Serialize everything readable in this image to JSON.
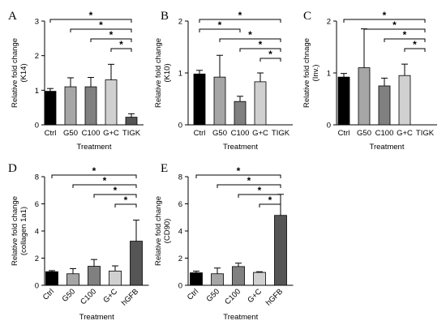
{
  "chart_data": [
    {
      "panel": "A",
      "type": "bar",
      "categories": [
        "Ctrl",
        "G50",
        "C100",
        "G+C",
        "TIGK"
      ],
      "values": [
        0.97,
        1.1,
        1.1,
        1.3,
        0.22
      ],
      "errors": [
        0.08,
        0.26,
        0.27,
        0.45,
        0.1
      ],
      "colors": [
        "#000000",
        "#a6a6a6",
        "#808080",
        "#d0d0d0",
        "#555555"
      ],
      "ylabel": "Relative fold change",
      "ylabel2": "(K14)",
      "xlabel": "Treatment",
      "ylim": [
        0,
        3
      ],
      "yticks": [
        0,
        1,
        2,
        3
      ],
      "slanted_labels": false,
      "significance": [
        {
          "from": 0,
          "to": 4,
          "label": "*"
        },
        {
          "from": 1,
          "to": 4,
          "label": "*"
        },
        {
          "from": 2,
          "to": 4,
          "label": "*"
        },
        {
          "from": 3,
          "to": 4,
          "label": "*"
        }
      ]
    },
    {
      "panel": "B",
      "type": "bar",
      "categories": [
        "Ctrl",
        "G50",
        "C100",
        "G+C",
        "TIGK"
      ],
      "values": [
        0.98,
        0.92,
        0.45,
        0.83,
        0.0
      ],
      "errors": [
        0.07,
        0.42,
        0.1,
        0.17,
        0.0
      ],
      "colors": [
        "#000000",
        "#a6a6a6",
        "#808080",
        "#d0d0d0",
        "#555555"
      ],
      "ylabel": "Relative fold change",
      "ylabel2": "(K10)",
      "xlabel": "Treatment",
      "ylim": [
        0,
        2
      ],
      "yticks": [
        0,
        1,
        2
      ],
      "slanted_labels": false,
      "significance": [
        {
          "from": 0,
          "to": 4,
          "label": "*"
        },
        {
          "from": 0,
          "to": 2,
          "label": "*"
        },
        {
          "from": 1,
          "to": 4,
          "label": "*"
        },
        {
          "from": 2,
          "to": 4,
          "label": "*"
        },
        {
          "from": 3,
          "to": 4,
          "label": "*"
        }
      ]
    },
    {
      "panel": "C",
      "type": "bar",
      "categories": [
        "Ctrl",
        "G50",
        "C100",
        "G+C",
        "TIGK"
      ],
      "values": [
        0.92,
        1.1,
        0.75,
        0.95,
        0.0
      ],
      "errors": [
        0.07,
        0.75,
        0.15,
        0.22,
        0.0
      ],
      "colors": [
        "#000000",
        "#a6a6a6",
        "#808080",
        "#d0d0d0",
        "#555555"
      ],
      "ylabel": "Relative fold chnage",
      "ylabel2": "(Inv.)",
      "xlabel": "Treatment",
      "ylim": [
        0,
        2
      ],
      "yticks": [
        0,
        1,
        2
      ],
      "slanted_labels": false,
      "significance": [
        {
          "from": 0,
          "to": 4,
          "label": "*"
        },
        {
          "from": 1,
          "to": 4,
          "label": "*"
        },
        {
          "from": 2,
          "to": 4,
          "label": "*"
        },
        {
          "from": 3,
          "to": 4,
          "label": "*"
        }
      ]
    },
    {
      "panel": "D",
      "type": "bar",
      "categories": [
        "Ctrl",
        "G50",
        "C100",
        "G+C",
        "hGFB"
      ],
      "values": [
        1.0,
        0.85,
        1.4,
        1.05,
        3.25
      ],
      "errors": [
        0.08,
        0.38,
        0.5,
        0.38,
        1.55
      ],
      "colors": [
        "#000000",
        "#a6a6a6",
        "#808080",
        "#d0d0d0",
        "#555555"
      ],
      "ylabel": "Relative fold change",
      "ylabel2": "(collagen 1a1)",
      "xlabel": "Treatment",
      "ylim": [
        0,
        8
      ],
      "yticks": [
        0,
        2,
        4,
        6,
        8
      ],
      "slanted_labels": true,
      "significance": [
        {
          "from": 0,
          "to": 4,
          "label": "*"
        },
        {
          "from": 1,
          "to": 4,
          "label": "*"
        },
        {
          "from": 2,
          "to": 4,
          "label": "*"
        },
        {
          "from": 3,
          "to": 4,
          "label": "*"
        }
      ]
    },
    {
      "panel": "E",
      "type": "bar",
      "categories": [
        "Ctrl",
        "G50",
        "C100",
        "G+C",
        "hGFB"
      ],
      "values": [
        0.92,
        0.85,
        1.38,
        0.95,
        5.15
      ],
      "errors": [
        0.12,
        0.42,
        0.25,
        0.05,
        1.55
      ],
      "colors": [
        "#000000",
        "#a6a6a6",
        "#808080",
        "#d0d0d0",
        "#555555"
      ],
      "ylabel": "Relative fold change",
      "ylabel2": "(CD90)",
      "xlabel": "Treatment",
      "ylim": [
        0,
        8
      ],
      "yticks": [
        0,
        2,
        4,
        6,
        8
      ],
      "slanted_labels": true,
      "significance": [
        {
          "from": 0,
          "to": 4,
          "label": "*"
        },
        {
          "from": 1,
          "to": 4,
          "label": "*"
        },
        {
          "from": 2,
          "to": 4,
          "label": "*"
        },
        {
          "from": 3,
          "to": 4,
          "label": "*"
        }
      ]
    }
  ]
}
